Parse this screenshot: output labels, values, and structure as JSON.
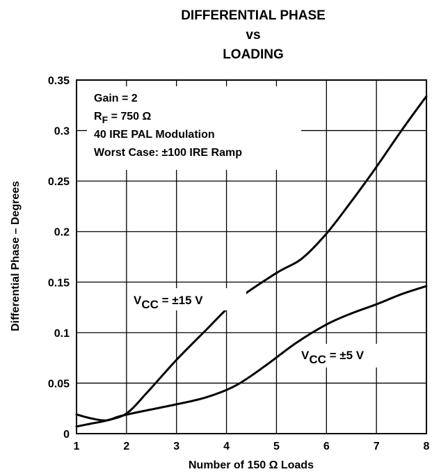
{
  "chart_data": {
    "type": "line",
    "title": [
      "DIFFERENTIAL PHASE",
      "vs",
      "LOADING"
    ],
    "xlabel": "Number of 150 Ω Loads",
    "ylabel": "Differential Phase – Degrees",
    "xlim": [
      1,
      8
    ],
    "ylim": [
      0,
      0.35
    ],
    "grid": true,
    "x_ticks": [
      "1",
      "2",
      "3",
      "4",
      "5",
      "6",
      "7",
      "8"
    ],
    "y_ticks": [
      "0",
      "0.05",
      "0.1",
      "0.15",
      "0.2",
      "0.25",
      "0.3",
      "0.35"
    ],
    "annotations": [
      {
        "text": "Gain = 2"
      },
      {
        "main": "R",
        "sub": "F",
        "rest": " = 750 Ω"
      },
      {
        "text": "40 IRE PAL Modulation"
      },
      {
        "text": "Worst Case: ±100 IRE Ramp"
      }
    ],
    "series": [
      {
        "name": "V_CC = ±15 V",
        "label_main": "V",
        "label_sub": "CC",
        "label_rest": " = ±15 V",
        "x": [
          1,
          1.3,
          1.6,
          2.0,
          2.4,
          3.0,
          3.6,
          4.2,
          5.0,
          5.5,
          6.0,
          6.5,
          7.0,
          7.5,
          8.0
        ],
        "y": [
          0.007,
          0.01,
          0.013,
          0.02,
          0.04,
          0.073,
          0.103,
          0.132,
          0.159,
          0.173,
          0.198,
          0.23,
          0.264,
          0.3,
          0.334
        ]
      },
      {
        "name": "V_CC = ±5 V",
        "label_main": "V",
        "label_sub": "CC",
        "label_rest": " = ±5 V",
        "x": [
          1,
          1.3,
          1.6,
          1.85,
          2.3,
          3.0,
          3.6,
          4.2,
          4.8,
          5.4,
          6.0,
          6.5,
          7.0,
          7.5,
          8.0
        ],
        "y": [
          0.019,
          0.015,
          0.013,
          0.017,
          0.022,
          0.029,
          0.036,
          0.048,
          0.068,
          0.09,
          0.108,
          0.119,
          0.128,
          0.138,
          0.146
        ]
      }
    ]
  }
}
